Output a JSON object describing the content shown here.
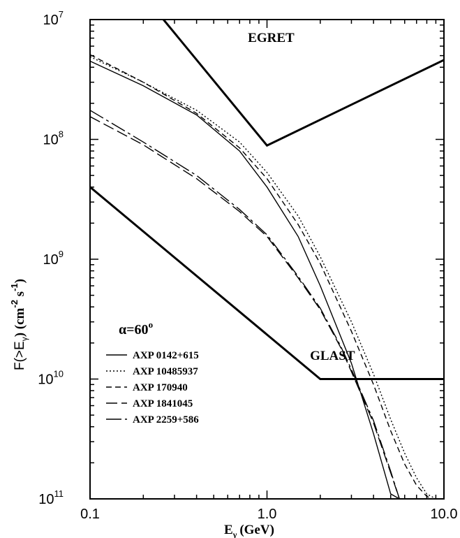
{
  "chart_data": {
    "type": "line",
    "xlabel": "E",
    "xlabel_sub": "γ",
    "xlabel_unit": "(GeV)",
    "ylabel": {
      "prefix": "F(>E",
      "sub": "γ",
      "mid": ") (cm",
      "sup1": "-2",
      "mid2": " s",
      "sup2": "-1",
      "end": ")"
    },
    "x_scale": "log",
    "y_scale": "log",
    "xlim": [
      0.1,
      10
    ],
    "ylim": [
      1e-11,
      1e-07
    ],
    "x_ticks": [
      {
        "value": 0.1,
        "label": "0.1"
      },
      {
        "value": 1,
        "label": "1.0"
      },
      {
        "value": 10,
        "label": "10.0"
      }
    ],
    "y_ticks": [
      {
        "value": 1e-07,
        "base": "10",
        "exp": "-7"
      },
      {
        "value": 1e-08,
        "base": "10",
        "exp": "-8"
      },
      {
        "value": 1e-09,
        "base": "10",
        "exp": "-9"
      },
      {
        "value": 1e-10,
        "base": "10",
        "exp": "-10"
      },
      {
        "value": 1e-11,
        "base": "10",
        "exp": "-11"
      }
    ],
    "grid": false,
    "legend_title": "α=60",
    "legend_title_sup": "o",
    "legend_placement": "bottom-left",
    "annotations": [
      {
        "text": "EGRET",
        "x": 0.78,
        "y": 6.5e-08
      },
      {
        "text": "GLAST",
        "x": 1.75,
        "y": 1.45e-10
      }
    ],
    "series": [
      {
        "name": "AXP 0142+615",
        "style": "solid",
        "width": 1.4,
        "x": [
          0.1,
          0.2,
          0.4,
          0.7,
          1.0,
          1.5,
          2.0,
          3.0,
          4.0,
          5.0,
          5.6
        ],
        "y": [
          4.5e-08,
          2.8e-08,
          1.6e-08,
          8e-09,
          4e-09,
          1.55e-09,
          6e-10,
          1.35e-10,
          3.5e-11,
          1.1e-11,
          1e-11
        ]
      },
      {
        "name": "AXP 10485937",
        "style": "dotted",
        "width": 1.4,
        "x": [
          0.1,
          0.2,
          0.4,
          0.7,
          1.0,
          1.5,
          2.0,
          3.0,
          4.0,
          5.0,
          6.0,
          7.0,
          8.0,
          9.0
        ],
        "y": [
          4.9e-08,
          3e-08,
          1.75e-08,
          9.5e-09,
          5.3e-09,
          2.3e-09,
          1.05e-09,
          3e-10,
          1.1e-10,
          4.6e-11,
          2.4e-11,
          1.5e-11,
          1.1e-11,
          1e-11
        ]
      },
      {
        "name": "AXP 170940",
        "style": "short-dash",
        "width": 1.4,
        "x": [
          0.1,
          0.2,
          0.4,
          0.7,
          1.0,
          1.5,
          2.0,
          3.0,
          4.0,
          5.0,
          6.0,
          7.0,
          8.0,
          8.6
        ],
        "y": [
          5.1e-08,
          3e-08,
          1.65e-08,
          8.5e-09,
          4.7e-09,
          1.95e-09,
          9.2e-10,
          2.5e-10,
          9e-11,
          3.7e-11,
          1.95e-11,
          1.3e-11,
          1.05e-11,
          1e-11
        ]
      },
      {
        "name": "AXP 1841045",
        "style": "long-dash",
        "width": 1.4,
        "x": [
          0.1,
          0.2,
          0.4,
          0.7,
          1.0,
          1.5,
          2.0,
          2.6,
          3.0,
          4.0,
          5.0,
          5.6
        ],
        "y": [
          1.55e-08,
          9e-09,
          4.7e-09,
          2.5e-09,
          1.55e-09,
          7e-10,
          3.8e-10,
          1.85e-10,
          1.15e-10,
          4.3e-11,
          1.65e-11,
          1e-11
        ]
      },
      {
        "name": "AXP 2259+586",
        "style": "dash-dot",
        "width": 1.4,
        "x": [
          0.1,
          0.2,
          0.4,
          0.7,
          1.0,
          1.5,
          2.0,
          2.6,
          3.0,
          4.0,
          5.0,
          5.6
        ],
        "y": [
          1.75e-08,
          9.5e-09,
          5e-09,
          2.6e-09,
          1.6e-09,
          7.2e-10,
          3.9e-10,
          1.9e-10,
          1.2e-10,
          4.5e-11,
          1.7e-11,
          1e-11
        ]
      }
    ],
    "sensitivity_curves": [
      {
        "label": "EGRET",
        "x": [
          0.26,
          1.0,
          10.0
        ],
        "y": [
          1e-07,
          8.9e-09,
          4.6e-08
        ]
      },
      {
        "label": "GLAST",
        "x": [
          0.1,
          2.0,
          10.0
        ],
        "y": [
          4e-09,
          1e-10,
          1e-10
        ]
      }
    ]
  }
}
